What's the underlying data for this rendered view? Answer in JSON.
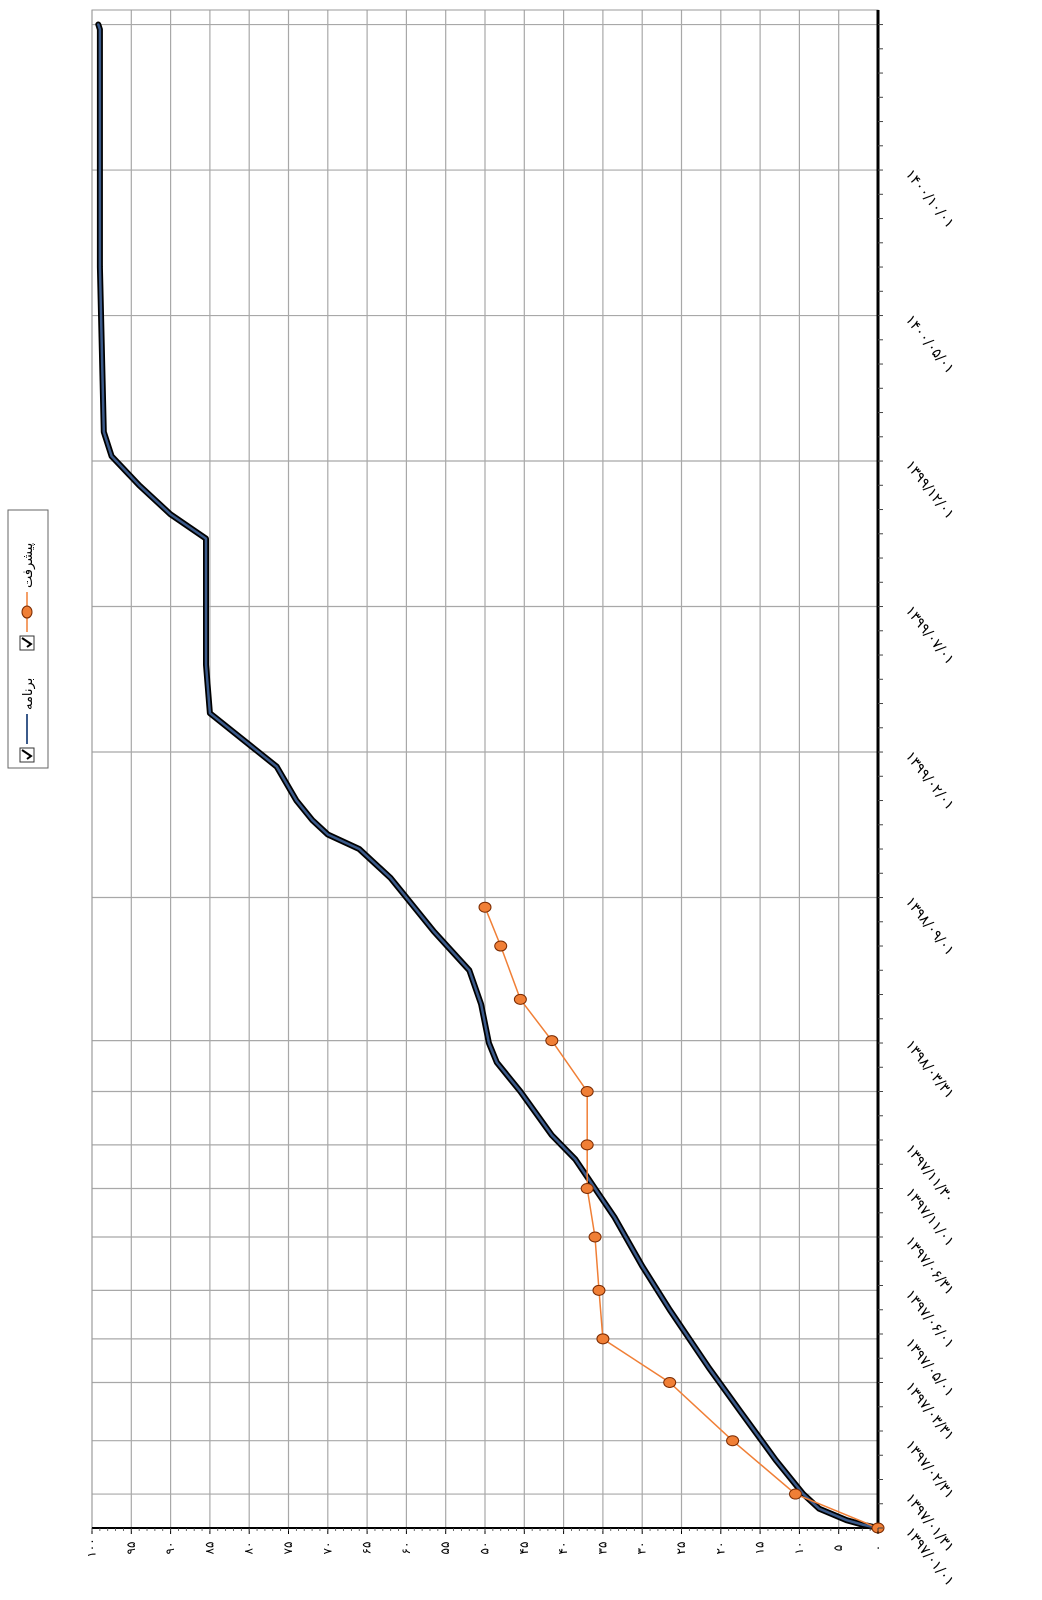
{
  "chart_data": {
    "type": "line",
    "title": "",
    "xlabel": "",
    "ylabel": "",
    "ylim": [
      0,
      100
    ],
    "grid": true,
    "legend_position": "top",
    "y_tick_labels": [
      "۰",
      "۵",
      "۱۰",
      "۱۵",
      "۲۰",
      "۲۵",
      "۳۰",
      "۳۵",
      "۴۰",
      "۴۵",
      "۵۰",
      "۵۵",
      "۶۰",
      "۶۵",
      "۷۰",
      "۷۵",
      "۸۰",
      "۸۵",
      "۹۰",
      "۹۵",
      "۱۰۰"
    ],
    "x_tick_labels": [
      "۱۳۹۷/۰۱/۰۱",
      "۱۳۹۷/۰۱/۳۱",
      "۱۳۹۷/۰۲/۳۱",
      "۱۳۹۷/۰۳/۳۱",
      "۱۳۹۷/۰۵/۰۱",
      "۱۳۹۷/۰۶/۰۱",
      "۱۳۹۷/۰۶/۳۱",
      "۱۳۹۷/۱۱/۰۱",
      "۱۳۹۷/۱۱/۳۰",
      "۱۳۹۸/۰۳/۳۱",
      "۱۳۹۸/۰۹/۰۱",
      "۱۳۹۹/۰۲/۰۱",
      "۱۳۹۹/۰۷/۰۱",
      "۱۳۹۹/۱۲/۰۱",
      "۱۴۰۰/۰۵/۰۱",
      "۱۴۰۰/۱۰/۰۱"
    ],
    "series": [
      {
        "name": "برنامه",
        "color": "#1f2a4a",
        "marker": "none",
        "values": [
          [
            0,
            0
          ],
          [
            7,
            2
          ],
          [
            16,
            4
          ],
          [
            40,
            7.5
          ],
          [
            70,
            9.5
          ],
          [
            140,
            13
          ],
          [
            240,
            17.5
          ],
          [
            330,
            21.5
          ],
          [
            450,
            26.5
          ],
          [
            540,
            30
          ],
          [
            640,
            33.5
          ],
          [
            700,
            36
          ],
          [
            760,
            38.5
          ],
          [
            810,
            41.5
          ],
          [
            900,
            45.5
          ],
          [
            960,
            48.5
          ],
          [
            1000,
            49.5
          ],
          [
            1080,
            50.5
          ],
          [
            1150,
            52
          ],
          [
            1230,
            56.5
          ],
          [
            1340,
            62
          ],
          [
            1400,
            66
          ],
          [
            1430,
            70
          ],
          [
            1460,
            72
          ],
          [
            1500,
            74
          ],
          [
            1570,
            76.5
          ],
          [
            1680,
            85
          ],
          [
            1780,
            85.5
          ],
          [
            1850,
            85.5
          ],
          [
            2040,
            85.5
          ],
          [
            2090,
            90
          ],
          [
            2150,
            94
          ],
          [
            2210,
            97.5
          ],
          [
            2260,
            98.5
          ],
          [
            2600,
            99
          ],
          [
            2900,
            99
          ],
          [
            3090,
            99
          ],
          [
            3100,
            99.2
          ]
        ]
      },
      {
        "name": "پیشرفت",
        "color": "#f07f36",
        "marker": "circle",
        "values": [
          [
            0,
            0
          ],
          [
            70,
            10.5
          ],
          [
            180,
            18.5
          ],
          [
            300,
            26.5
          ],
          [
            390,
            35
          ],
          [
            490,
            35.5
          ],
          [
            600,
            36
          ],
          [
            700,
            37
          ],
          [
            790,
            37
          ],
          [
            900,
            37
          ],
          [
            1005,
            41.5
          ],
          [
            1090,
            45.5
          ],
          [
            1200,
            48
          ],
          [
            1280,
            50
          ]
        ]
      }
    ]
  }
}
